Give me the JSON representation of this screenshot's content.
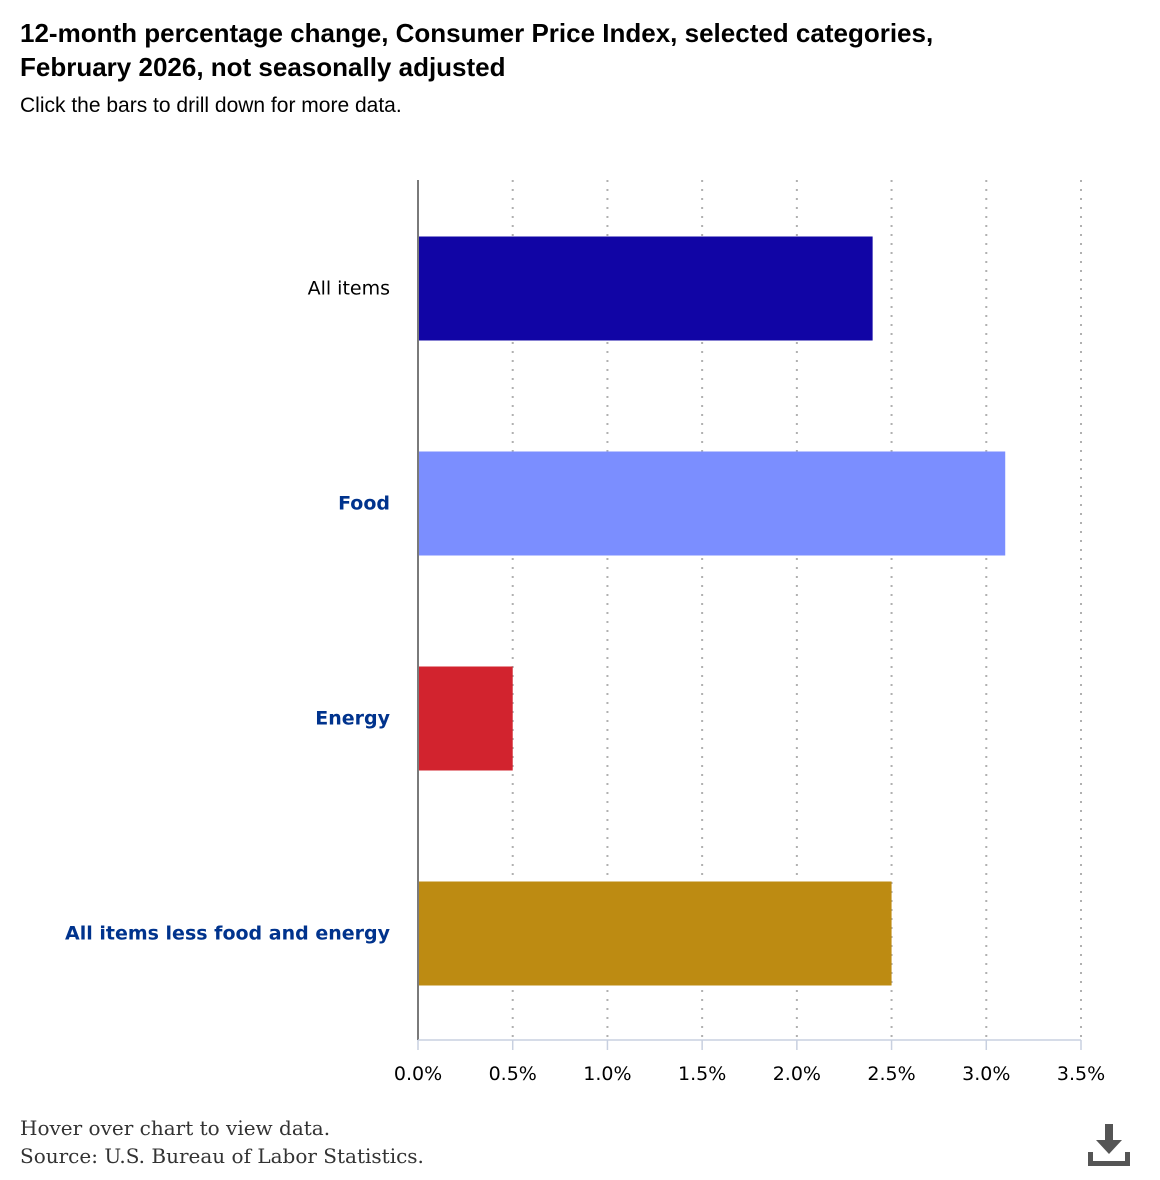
{
  "header": {
    "title_line1": "12-month percentage change, Consumer Price Index, selected categories,",
    "title_line2": "February 2026, not seasonally adjusted",
    "subtitle": "Click the bars to drill down for more data."
  },
  "footer": {
    "hover_note": "Hover over chart to view data.",
    "source": "Source: U.S. Bureau of Labor Statistics."
  },
  "download": {
    "icon": "download-icon"
  },
  "chart_data": {
    "type": "bar",
    "orientation": "horizontal",
    "categories": [
      "All items",
      "Food",
      "Energy",
      "All items less food and energy"
    ],
    "values": [
      2.4,
      3.1,
      0.5,
      2.5
    ],
    "colors": [
      "#1105A5",
      "#7B8EFF",
      "#D2232E",
      "#BD8B12"
    ],
    "label_colors": [
      "#000000",
      "#00338D",
      "#00338D",
      "#00338D"
    ],
    "label_links": [
      false,
      true,
      true,
      true
    ],
    "xlim": [
      0,
      3.5
    ],
    "ticks": [
      "0.0%",
      "0.5%",
      "1.0%",
      "1.5%",
      "2.0%",
      "2.5%",
      "3.0%",
      "3.5%"
    ],
    "tick_values": [
      0,
      0.5,
      1.0,
      1.5,
      2.0,
      2.5,
      3.0,
      3.5
    ],
    "grid": true,
    "legend": "none"
  }
}
